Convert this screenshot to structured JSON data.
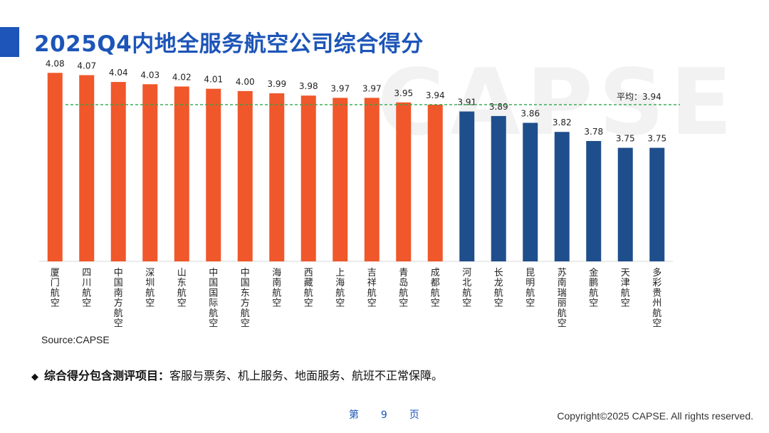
{
  "title": "2025Q4内地全服务航空公司综合得分",
  "watermark": "CAPSE",
  "source": "Source:CAPSE",
  "note": {
    "bullet_icon": "diamond-icon",
    "label": "综合得分包含测评项目：",
    "text": "客服与票务、机上服务、地面服务、航班不正常保障。"
  },
  "page": {
    "prefix": "第",
    "number": "9",
    "suffix": "页"
  },
  "copyright": "Copyright©2025 CAPSE. All rights reserved.",
  "colors": {
    "above_avg": "#f0572a",
    "below_avg": "#1f4e8c",
    "avg_line": "#2aa84a",
    "title": "#1d55b8"
  },
  "chart_data": {
    "type": "bar",
    "title": "",
    "xlabel": "",
    "ylabel": "",
    "ylim": [
      3.25,
      4.15
    ],
    "categories": [
      "厦门航空",
      "四川航空",
      "中国南方航空",
      "深圳航空",
      "山东航空",
      "中国国际航空",
      "中国东方航空",
      "海南航空",
      "西藏航空",
      "上海航空",
      "吉祥航空",
      "青岛航空",
      "成都航空",
      "河北航空",
      "长龙航空",
      "昆明航空",
      "苏南瑞丽航空",
      "金鹏航空",
      "天津航空",
      "多彩贵州航空"
    ],
    "values": [
      4.08,
      4.07,
      4.04,
      4.03,
      4.02,
      4.01,
      4.0,
      3.99,
      3.98,
      3.97,
      3.97,
      3.95,
      3.94,
      3.91,
      3.89,
      3.86,
      3.82,
      3.78,
      3.75,
      3.75
    ],
    "value_labels": [
      "4.08",
      "4.07",
      "4.04",
      "4.03",
      "4.02",
      "4.01",
      "4.00",
      "3.99",
      "3.98",
      "3.97",
      "3.97",
      "3.95",
      "3.94",
      "3.91",
      "3.89",
      "3.86",
      "3.82",
      "3.78",
      "3.75",
      "3.75"
    ],
    "series_groups": [
      "above",
      "above",
      "above",
      "above",
      "above",
      "above",
      "above",
      "above",
      "above",
      "above",
      "above",
      "above",
      "above",
      "below",
      "below",
      "below",
      "below",
      "below",
      "below",
      "below"
    ],
    "average": {
      "value": 3.94,
      "label": "平均：3.94"
    }
  }
}
